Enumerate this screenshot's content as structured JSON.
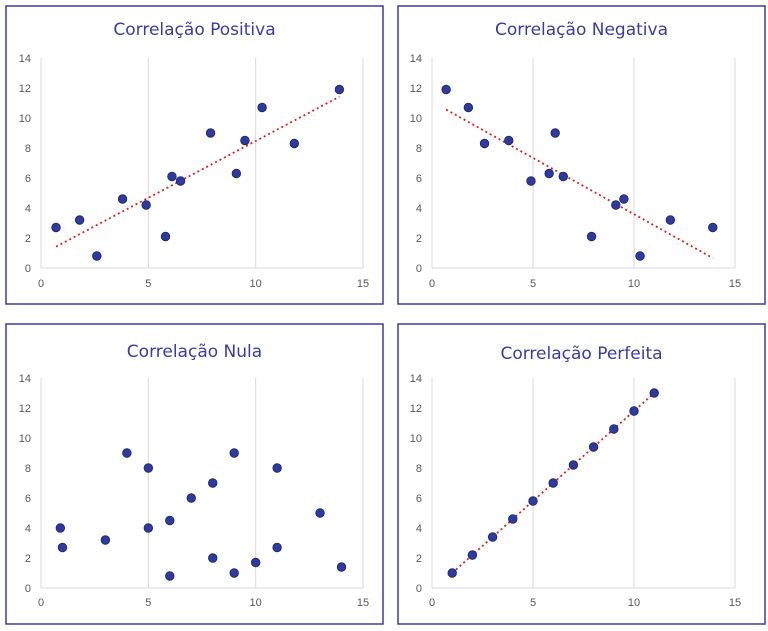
{
  "colors": {
    "point": "#2E3A9E",
    "point_edge": "#1C2570",
    "trend": "#E02020",
    "title": "#3A3AB0",
    "frame": "#3A3AB0",
    "grid": "#D9D9D9",
    "tick_text": "#595959"
  },
  "chart_data": [
    {
      "type": "scatter",
      "title": "Correlação Positiva",
      "xlim": [
        0,
        15
      ],
      "ylim": [
        0,
        14
      ],
      "xticks": [
        "0",
        "5",
        "10",
        "15"
      ],
      "yticks": [
        "0",
        "2",
        "4",
        "6",
        "8",
        "10",
        "12",
        "14"
      ],
      "grid": "vertical",
      "trendline": true,
      "points": [
        {
          "x": 0.7,
          "y": 2.7
        },
        {
          "x": 1.8,
          "y": 3.2
        },
        {
          "x": 2.6,
          "y": 0.8
        },
        {
          "x": 3.8,
          "y": 4.6
        },
        {
          "x": 4.9,
          "y": 4.2
        },
        {
          "x": 5.8,
          "y": 2.1
        },
        {
          "x": 6.1,
          "y": 6.1
        },
        {
          "x": 6.5,
          "y": 5.8
        },
        {
          "x": 7.9,
          "y": 9.0
        },
        {
          "x": 9.1,
          "y": 6.3
        },
        {
          "x": 9.5,
          "y": 8.5
        },
        {
          "x": 10.3,
          "y": 10.7
        },
        {
          "x": 11.8,
          "y": 8.3
        },
        {
          "x": 13.9,
          "y": 11.9
        }
      ]
    },
    {
      "type": "scatter",
      "title": "Correlação Negativa",
      "xlim": [
        0,
        15
      ],
      "ylim": [
        0,
        14
      ],
      "xticks": [
        "0",
        "5",
        "10",
        "15"
      ],
      "yticks": [
        "0",
        "2",
        "4",
        "6",
        "8",
        "10",
        "12",
        "14"
      ],
      "grid": "vertical",
      "trendline": true,
      "points": [
        {
          "x": 0.7,
          "y": 11.9
        },
        {
          "x": 1.8,
          "y": 10.7
        },
        {
          "x": 2.6,
          "y": 8.3
        },
        {
          "x": 3.8,
          "y": 8.5
        },
        {
          "x": 4.9,
          "y": 5.8
        },
        {
          "x": 5.8,
          "y": 6.3
        },
        {
          "x": 6.1,
          "y": 9.0
        },
        {
          "x": 6.5,
          "y": 6.1
        },
        {
          "x": 7.9,
          "y": 2.1
        },
        {
          "x": 9.1,
          "y": 4.2
        },
        {
          "x": 9.5,
          "y": 4.6
        },
        {
          "x": 10.3,
          "y": 0.8
        },
        {
          "x": 11.8,
          "y": 3.2
        },
        {
          "x": 13.9,
          "y": 2.7
        }
      ]
    },
    {
      "type": "scatter",
      "title": "Correlação Nula",
      "xlim": [
        0,
        15
      ],
      "ylim": [
        0,
        14
      ],
      "xticks": [
        "0",
        "5",
        "10",
        "15"
      ],
      "yticks": [
        "0",
        "2",
        "4",
        "6",
        "8",
        "10",
        "12",
        "14"
      ],
      "grid": "vertical",
      "trendline": false,
      "points": [
        {
          "x": 0.9,
          "y": 4.0
        },
        {
          "x": 1.0,
          "y": 2.7
        },
        {
          "x": 3.0,
          "y": 3.2
        },
        {
          "x": 4.0,
          "y": 9.0
        },
        {
          "x": 5.0,
          "y": 8.0
        },
        {
          "x": 5.0,
          "y": 4.0
        },
        {
          "x": 6.0,
          "y": 4.5
        },
        {
          "x": 6.0,
          "y": 0.8
        },
        {
          "x": 7.0,
          "y": 6.0
        },
        {
          "x": 8.0,
          "y": 7.0
        },
        {
          "x": 8.0,
          "y": 2.0
        },
        {
          "x": 9.0,
          "y": 9.0
        },
        {
          "x": 9.0,
          "y": 1.0
        },
        {
          "x": 10.0,
          "y": 1.7
        },
        {
          "x": 11.0,
          "y": 8.0
        },
        {
          "x": 11.0,
          "y": 2.7
        },
        {
          "x": 13.0,
          "y": 5.0
        },
        {
          "x": 14.0,
          "y": 1.4
        }
      ]
    },
    {
      "type": "scatter",
      "title": "Correlação Perfeita",
      "xlim": [
        0,
        15
      ],
      "ylim": [
        0,
        14
      ],
      "xticks": [
        "0",
        "5",
        "10",
        "15"
      ],
      "yticks": [
        "0",
        "2",
        "4",
        "6",
        "8",
        "10",
        "12",
        "14"
      ],
      "grid": "vertical",
      "trendline": true,
      "points": [
        {
          "x": 1,
          "y": 1.0
        },
        {
          "x": 2,
          "y": 2.2
        },
        {
          "x": 3,
          "y": 3.4
        },
        {
          "x": 4,
          "y": 4.6
        },
        {
          "x": 5,
          "y": 5.8
        },
        {
          "x": 6,
          "y": 7.0
        },
        {
          "x": 7,
          "y": 8.2
        },
        {
          "x": 8,
          "y": 9.4
        },
        {
          "x": 9,
          "y": 10.6
        },
        {
          "x": 10,
          "y": 11.8
        },
        {
          "x": 11,
          "y": 13.0
        }
      ]
    }
  ]
}
